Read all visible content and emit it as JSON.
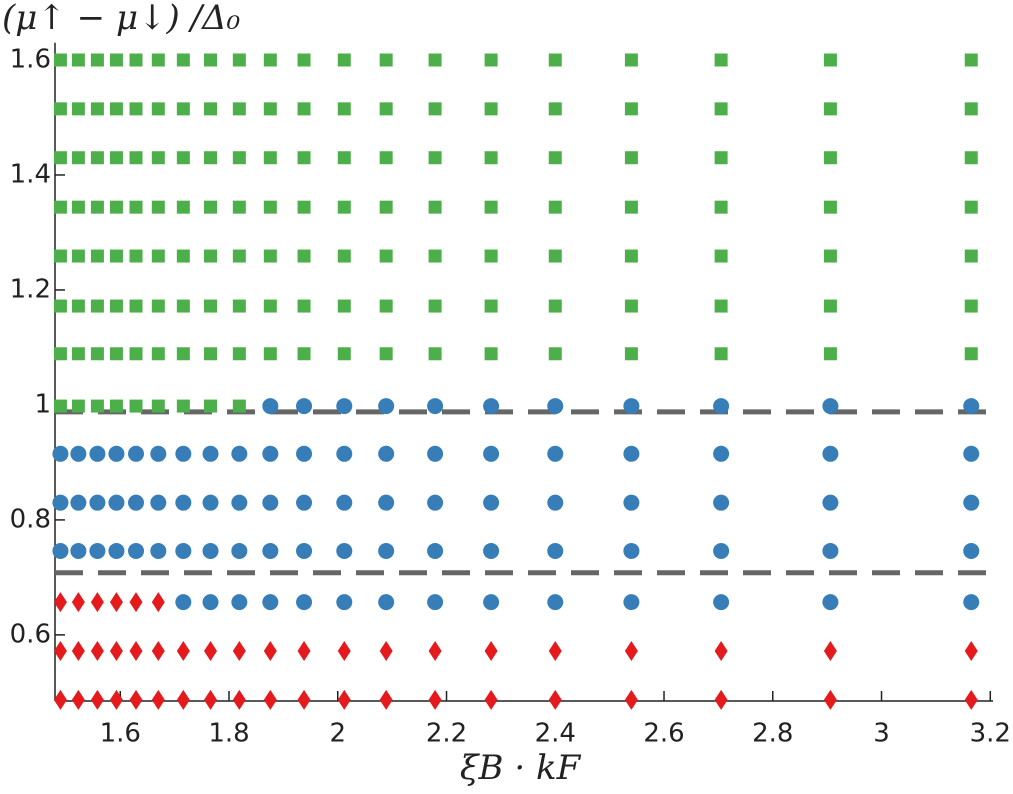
{
  "chart_data": {
    "type": "scatter",
    "title_y": "(μ↑ − μ↓) /Δ₀",
    "xlabel": "ξB · kF",
    "xlim": [
      1.48,
      3.205
    ],
    "ylim": [
      0.485,
      1.63
    ],
    "xticks": [
      1.6,
      1.8,
      2,
      2.2,
      2.4,
      2.6,
      2.8,
      3,
      3.2
    ],
    "yticks": [
      0.6,
      0.8,
      1,
      1.2,
      1.4,
      1.6
    ],
    "hlines": [
      {
        "y": 0.988,
        "color": "#666666",
        "style": "dashed"
      },
      {
        "y": 0.708,
        "color": "#666666",
        "style": "dashed"
      }
    ],
    "series": [
      {
        "color": "#e41a1c",
        "marker": "diamond",
        "x": [
          1.49,
          1.523,
          1.558,
          1.593,
          1.629,
          1.67,
          1.716,
          1.766,
          1.819,
          1.876,
          1.938,
          2.012,
          2.089,
          2.179,
          2.282,
          2.4,
          2.54,
          2.705,
          2.906,
          3.165,
          1.49,
          1.523,
          1.558,
          1.593,
          1.629,
          1.67,
          1.716,
          1.766,
          1.819,
          1.876,
          1.938,
          2.012,
          2.089,
          2.179,
          2.282,
          2.4,
          2.54,
          2.705,
          2.906,
          3.165,
          1.49,
          1.523,
          1.558,
          1.593,
          1.629,
          1.67
        ],
        "y": [
          0.487,
          0.487,
          0.487,
          0.487,
          0.487,
          0.487,
          0.487,
          0.487,
          0.487,
          0.487,
          0.487,
          0.487,
          0.487,
          0.487,
          0.487,
          0.487,
          0.487,
          0.487,
          0.487,
          0.487,
          0.572,
          0.572,
          0.572,
          0.572,
          0.572,
          0.572,
          0.572,
          0.572,
          0.572,
          0.572,
          0.572,
          0.572,
          0.572,
          0.572,
          0.572,
          0.572,
          0.572,
          0.572,
          0.572,
          0.572,
          0.657,
          0.657,
          0.657,
          0.657,
          0.657,
          0.657
        ]
      },
      {
        "color": "#377eb8",
        "marker": "circle",
        "x": [
          1.716,
          1.766,
          1.819,
          1.876,
          1.938,
          2.012,
          2.089,
          2.179,
          2.282,
          2.4,
          2.54,
          2.705,
          2.906,
          3.165,
          1.49,
          1.523,
          1.558,
          1.593,
          1.629,
          1.67,
          1.716,
          1.766,
          1.819,
          1.876,
          1.938,
          2.012,
          2.089,
          2.179,
          2.282,
          2.4,
          2.54,
          2.705,
          2.906,
          3.165,
          1.49,
          1.523,
          1.558,
          1.593,
          1.629,
          1.67,
          1.716,
          1.766,
          1.819,
          1.876,
          1.938,
          2.012,
          2.089,
          2.179,
          2.282,
          2.4,
          2.54,
          2.705,
          2.906,
          3.165,
          1.49,
          1.523,
          1.558,
          1.593,
          1.629,
          1.67,
          1.716,
          1.766,
          1.819,
          1.876,
          1.938,
          2.012,
          2.089,
          2.179,
          2.282,
          2.4,
          2.54,
          2.705,
          2.906,
          3.165,
          1.876,
          1.938,
          2.012,
          2.089,
          2.179,
          2.282,
          2.4,
          2.54,
          2.705,
          2.906,
          3.165
        ],
        "y": [
          0.657,
          0.657,
          0.657,
          0.657,
          0.657,
          0.657,
          0.657,
          0.657,
          0.657,
          0.657,
          0.657,
          0.657,
          0.657,
          0.657,
          0.746,
          0.746,
          0.746,
          0.746,
          0.746,
          0.746,
          0.746,
          0.746,
          0.746,
          0.746,
          0.746,
          0.746,
          0.746,
          0.746,
          0.746,
          0.746,
          0.746,
          0.746,
          0.746,
          0.746,
          0.83,
          0.83,
          0.83,
          0.83,
          0.83,
          0.83,
          0.83,
          0.83,
          0.83,
          0.83,
          0.83,
          0.83,
          0.83,
          0.83,
          0.83,
          0.83,
          0.83,
          0.83,
          0.83,
          0.83,
          0.915,
          0.915,
          0.915,
          0.915,
          0.915,
          0.915,
          0.915,
          0.915,
          0.915,
          0.915,
          0.915,
          0.915,
          0.915,
          0.915,
          0.915,
          0.915,
          0.915,
          0.915,
          0.915,
          0.915,
          0.998,
          0.998,
          0.998,
          0.998,
          0.998,
          0.998,
          0.998,
          0.998,
          0.998,
          0.998,
          0.998
        ]
      },
      {
        "color": "#4daf4a",
        "marker": "square",
        "x": [
          1.49,
          1.523,
          1.558,
          1.593,
          1.629,
          1.67,
          1.716,
          1.766,
          1.819,
          1.49,
          1.523,
          1.558,
          1.593,
          1.629,
          1.67,
          1.716,
          1.766,
          1.819,
          1.876,
          1.938,
          2.012,
          2.089,
          2.179,
          2.282,
          2.4,
          2.54,
          2.705,
          2.906,
          3.165,
          1.49,
          1.523,
          1.558,
          1.593,
          1.629,
          1.67,
          1.716,
          1.766,
          1.819,
          1.876,
          1.938,
          2.012,
          2.089,
          2.179,
          2.282,
          2.4,
          2.54,
          2.705,
          2.906,
          3.165,
          1.49,
          1.523,
          1.558,
          1.593,
          1.629,
          1.67,
          1.716,
          1.766,
          1.819,
          1.876,
          1.938,
          2.012,
          2.089,
          2.179,
          2.282,
          2.4,
          2.54,
          2.705,
          2.906,
          3.165,
          1.49,
          1.523,
          1.558,
          1.593,
          1.629,
          1.67,
          1.716,
          1.766,
          1.819,
          1.876,
          1.938,
          2.012,
          2.089,
          2.179,
          2.282,
          2.4,
          2.54,
          2.705,
          2.906,
          3.165,
          1.49,
          1.523,
          1.558,
          1.593,
          1.629,
          1.67,
          1.716,
          1.766,
          1.819,
          1.876,
          1.938,
          2.012,
          2.089,
          2.179,
          2.282,
          2.4,
          2.54,
          2.705,
          2.906,
          3.165,
          1.49,
          1.523,
          1.558,
          1.593,
          1.629,
          1.67,
          1.716,
          1.766,
          1.819,
          1.876,
          1.938,
          2.012,
          2.089,
          2.179,
          2.282,
          2.4,
          2.54,
          2.705,
          2.906,
          3.165,
          1.49,
          1.523,
          1.558,
          1.593,
          1.629,
          1.67,
          1.716,
          1.766,
          1.819,
          1.876,
          1.938,
          2.012,
          2.089,
          2.179,
          2.282,
          2.4,
          2.54,
          2.705,
          2.906,
          3.165
        ],
        "y": [
          0.998,
          0.998,
          0.998,
          0.998,
          0.998,
          0.998,
          0.998,
          0.998,
          0.998,
          1.089,
          1.089,
          1.089,
          1.089,
          1.089,
          1.089,
          1.089,
          1.089,
          1.089,
          1.089,
          1.089,
          1.089,
          1.089,
          1.089,
          1.089,
          1.089,
          1.089,
          1.089,
          1.089,
          1.089,
          1.172,
          1.172,
          1.172,
          1.172,
          1.172,
          1.172,
          1.172,
          1.172,
          1.172,
          1.172,
          1.172,
          1.172,
          1.172,
          1.172,
          1.172,
          1.172,
          1.172,
          1.172,
          1.172,
          1.172,
          1.259,
          1.259,
          1.259,
          1.259,
          1.259,
          1.259,
          1.259,
          1.259,
          1.259,
          1.259,
          1.259,
          1.259,
          1.259,
          1.259,
          1.259,
          1.259,
          1.259,
          1.259,
          1.259,
          1.259,
          1.344,
          1.344,
          1.344,
          1.344,
          1.344,
          1.344,
          1.344,
          1.344,
          1.344,
          1.344,
          1.344,
          1.344,
          1.344,
          1.344,
          1.344,
          1.344,
          1.344,
          1.344,
          1.344,
          1.344,
          1.43,
          1.43,
          1.43,
          1.43,
          1.43,
          1.43,
          1.43,
          1.43,
          1.43,
          1.43,
          1.43,
          1.43,
          1.43,
          1.43,
          1.43,
          1.43,
          1.43,
          1.43,
          1.43,
          1.43,
          1.515,
          1.515,
          1.515,
          1.515,
          1.515,
          1.515,
          1.515,
          1.515,
          1.515,
          1.515,
          1.515,
          1.515,
          1.515,
          1.515,
          1.515,
          1.515,
          1.515,
          1.515,
          1.515,
          1.515,
          1.6,
          1.6,
          1.6,
          1.6,
          1.6,
          1.6,
          1.6,
          1.6,
          1.6,
          1.6,
          1.6,
          1.6,
          1.6,
          1.6,
          1.6,
          1.6,
          1.6,
          1.6,
          1.6,
          1.6
        ]
      }
    ]
  }
}
